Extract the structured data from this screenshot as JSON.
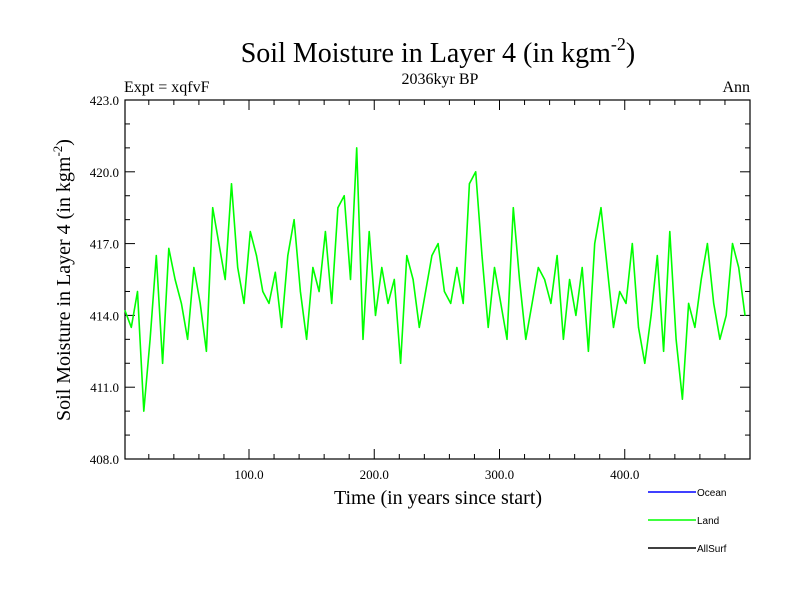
{
  "chart_data": {
    "type": "line",
    "title_main": "Soil Moisture in Layer 4 (in kgm",
    "title_sup": "-2",
    "title_close": ")",
    "subtitle": "2036kyr BP",
    "left_label": "Expt = xqfvF",
    "right_label": "Ann",
    "xlabel": "Time (in years since start)",
    "ylabel_main": "Soil Moisture in Layer 4 (in kgm",
    "ylabel_sup": "-2",
    "ylabel_close": ")",
    "xlim": [
      1,
      500
    ],
    "ylim": [
      408.0,
      423.0
    ],
    "x_ticks": [
      100,
      200,
      300,
      400
    ],
    "x_tick_labels": [
      "100.0",
      "200.0",
      "300.0",
      "400.0"
    ],
    "y_ticks": [
      408,
      411,
      414,
      417,
      420,
      423
    ],
    "y_tick_labels": [
      "408.0",
      "411.0",
      "414.0",
      "417.0",
      "420.0",
      "423.0"
    ],
    "legend": [
      {
        "name": "Ocean",
        "color": "#0000ff"
      },
      {
        "name": "Land",
        "color": "#00ff00"
      },
      {
        "name": "AllSurf",
        "color": "#000000"
      }
    ],
    "series": [
      {
        "name": "Land",
        "color": "#00ff00",
        "x_start": 1,
        "x_step": 5,
        "values": [
          414.2,
          413.5,
          415.0,
          410.0,
          413.0,
          416.5,
          412.0,
          416.8,
          415.5,
          414.5,
          413.0,
          416.0,
          414.5,
          412.5,
          418.5,
          417.0,
          415.5,
          419.5,
          416.0,
          414.5,
          417.5,
          416.5,
          415.0,
          414.5,
          415.8,
          413.5,
          416.5,
          418.0,
          415.0,
          413.0,
          416.0,
          415.0,
          417.5,
          414.5,
          418.5,
          419.0,
          415.5,
          421.0,
          413.0,
          417.5,
          414.0,
          416.0,
          414.5,
          415.5,
          412.0,
          416.5,
          415.5,
          413.5,
          415.0,
          416.5,
          417.0,
          415.0,
          414.5,
          416.0,
          414.5,
          419.5,
          420.0,
          416.5,
          413.5,
          416.0,
          414.5,
          413.0,
          418.5,
          415.5,
          413.0,
          414.5,
          416.0,
          415.5,
          414.5,
          416.5,
          413.0,
          415.5,
          414.0,
          416.0,
          412.5,
          417.0,
          418.5,
          416.0,
          413.5,
          415.0,
          414.5,
          417.0,
          413.5,
          412.0,
          414.0,
          416.5,
          412.5,
          417.5,
          413.0,
          410.5,
          414.5,
          413.5,
          415.5,
          417.0,
          414.5,
          413.0,
          414.0,
          417.0,
          416.0,
          414.0
        ]
      }
    ]
  }
}
